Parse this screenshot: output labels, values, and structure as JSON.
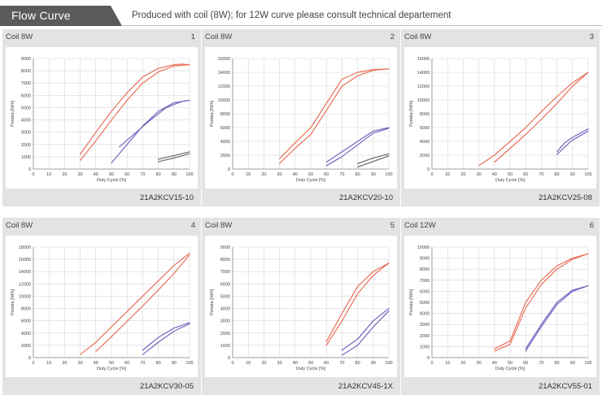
{
  "header": {
    "title": "Flow Curve",
    "note": "Produced with coil (8W); for 12W curve please consult technical departement"
  },
  "colors": {
    "header_bg": "#5a5a5a",
    "panel_bg": "#e3e3e3",
    "red": "#e8705a",
    "blue": "#7068c0",
    "gray": "#666666"
  },
  "panels": [
    {
      "coil": "Coil 8W",
      "number": "1",
      "code": "21A2KCV15-10"
    },
    {
      "coil": "Coil 8W",
      "number": "2",
      "code": "21A2KCV20-10"
    },
    {
      "coil": "Coil 8W",
      "number": "3",
      "code": "21A2KCV25-08"
    },
    {
      "coil": "Coil 8W",
      "number": "4",
      "code": "21A2KCV30-05"
    },
    {
      "coil": "Coil 8W",
      "number": "5",
      "code": "21A2KCV45-1X"
    },
    {
      "coil": "Coil 12W",
      "number": "6",
      "code": "21A2KCV55-01"
    }
  ],
  "chart_data": [
    {
      "type": "line",
      "xlabel": "Duty Cycle [%]",
      "ylabel": "Portata [Nl/h]",
      "xlim": [
        0,
        100
      ],
      "ylim": [
        0,
        9000
      ],
      "ystep": 1000,
      "grid": true,
      "series": [
        {
          "color": "red",
          "x": [
            30,
            40,
            50,
            60,
            70,
            80,
            90,
            95,
            100
          ],
          "y": [
            1200,
            3000,
            4700,
            6200,
            7500,
            8200,
            8500,
            8550,
            8500
          ]
        },
        {
          "color": "red",
          "x": [
            30,
            40,
            50,
            60,
            70,
            80,
            90,
            100
          ],
          "y": [
            700,
            2300,
            4000,
            5600,
            7000,
            7900,
            8400,
            8500
          ]
        },
        {
          "color": "blue",
          "x": [
            50,
            60,
            70,
            80,
            90,
            100
          ],
          "y": [
            500,
            2000,
            3500,
            4700,
            5400,
            5600
          ]
        },
        {
          "color": "blue",
          "x": [
            55,
            65,
            75,
            85,
            95,
            100
          ],
          "y": [
            1800,
            2900,
            4000,
            5000,
            5500,
            5600
          ]
        },
        {
          "color": "gray",
          "x": [
            80,
            90,
            100
          ],
          "y": [
            800,
            1100,
            1400
          ]
        },
        {
          "color": "gray",
          "x": [
            80,
            90,
            100
          ],
          "y": [
            600,
            900,
            1250
          ]
        }
      ]
    },
    {
      "type": "line",
      "xlabel": "Duty Cycle [%]",
      "ylabel": "Portata [Nl/h]",
      "xlim": [
        0,
        100
      ],
      "ylim": [
        0,
        16000
      ],
      "ystep": 2000,
      "grid": true,
      "series": [
        {
          "color": "red",
          "x": [
            30,
            40,
            50,
            60,
            70,
            80,
            90,
            100
          ],
          "y": [
            1500,
            3800,
            6000,
            9500,
            13000,
            14000,
            14400,
            14500
          ]
        },
        {
          "color": "red",
          "x": [
            30,
            40,
            50,
            60,
            70,
            80,
            90,
            100
          ],
          "y": [
            800,
            3000,
            5000,
            8500,
            12000,
            13500,
            14300,
            14500
          ]
        },
        {
          "color": "blue",
          "x": [
            60,
            70,
            80,
            90,
            100
          ],
          "y": [
            1000,
            2500,
            4000,
            5500,
            6000
          ]
        },
        {
          "color": "blue",
          "x": [
            60,
            70,
            80,
            90,
            100
          ],
          "y": [
            500,
            1800,
            3500,
            5200,
            5900
          ]
        },
        {
          "color": "gray",
          "x": [
            80,
            90,
            100
          ],
          "y": [
            800,
            1600,
            2200
          ]
        },
        {
          "color": "gray",
          "x": [
            80,
            90,
            100
          ],
          "y": [
            300,
            1100,
            1900
          ]
        }
      ]
    },
    {
      "type": "line",
      "xlabel": "Duty Cycle [%]",
      "ylabel": "Portata [Nl/h]",
      "xlim": [
        0,
        100
      ],
      "ylim": [
        0,
        16000
      ],
      "ystep": 2000,
      "grid": true,
      "series": [
        {
          "color": "red",
          "x": [
            30,
            40,
            50,
            60,
            70,
            80,
            90,
            100
          ],
          "y": [
            500,
            2000,
            4000,
            6000,
            8300,
            10500,
            12500,
            14000
          ]
        },
        {
          "color": "red",
          "x": [
            40,
            50,
            60,
            70,
            80,
            90,
            100
          ],
          "y": [
            1000,
            3000,
            5000,
            7200,
            9500,
            12000,
            14000
          ]
        },
        {
          "color": "blue",
          "x": [
            80,
            85,
            90,
            100
          ],
          "y": [
            2500,
            3800,
            4600,
            5800
          ]
        },
        {
          "color": "blue",
          "x": [
            80,
            85,
            90,
            100
          ],
          "y": [
            2100,
            3200,
            4200,
            5500
          ]
        }
      ]
    },
    {
      "type": "line",
      "xlabel": "Duty Cycle [%]",
      "ylabel": "Portata [Nl/h]",
      "xlim": [
        0,
        100
      ],
      "ylim": [
        0,
        18000
      ],
      "ystep": 2000,
      "grid": true,
      "series": [
        {
          "color": "red",
          "x": [
            30,
            40,
            50,
            60,
            70,
            80,
            90,
            100
          ],
          "y": [
            500,
            2500,
            5000,
            7500,
            10000,
            12500,
            15000,
            17000
          ]
        },
        {
          "color": "red",
          "x": [
            40,
            50,
            60,
            70,
            80,
            90,
            100
          ],
          "y": [
            1000,
            3400,
            5900,
            8400,
            11000,
            13700,
            16700
          ]
        },
        {
          "color": "blue",
          "x": [
            70,
            80,
            90,
            100
          ],
          "y": [
            1200,
            3300,
            4800,
            5700
          ]
        },
        {
          "color": "blue",
          "x": [
            70,
            80,
            90,
            100
          ],
          "y": [
            500,
            2500,
            4300,
            5500
          ]
        }
      ]
    },
    {
      "type": "line",
      "xlabel": "Duty Cycle [%]",
      "ylabel": "Portata [Nl/h]",
      "xlim": [
        0,
        100
      ],
      "ylim": [
        0,
        9000
      ],
      "ystep": 1000,
      "grid": true,
      "series": [
        {
          "color": "red",
          "x": [
            60,
            70,
            80,
            90,
            100
          ],
          "y": [
            1300,
            3600,
            5800,
            7000,
            7700
          ]
        },
        {
          "color": "red",
          "x": [
            60,
            70,
            80,
            90,
            100
          ],
          "y": [
            1000,
            3000,
            5200,
            6700,
            7700
          ]
        },
        {
          "color": "blue",
          "x": [
            70,
            80,
            90,
            100
          ],
          "y": [
            600,
            1500,
            3000,
            4000
          ]
        },
        {
          "color": "blue",
          "x": [
            70,
            80,
            90,
            100
          ],
          "y": [
            200,
            1000,
            2500,
            3800
          ]
        }
      ]
    },
    {
      "type": "line",
      "xlabel": "Duty Cycle [%]",
      "ylabel": "Portata [Nl/h]",
      "xlim": [
        0,
        100
      ],
      "ylim": [
        0,
        10000
      ],
      "ystep": 1000,
      "grid": true,
      "series": [
        {
          "color": "red",
          "x": [
            40,
            50,
            60,
            70,
            80,
            90,
            100
          ],
          "y": [
            800,
            1500,
            5000,
            7000,
            8300,
            9000,
            9400
          ]
        },
        {
          "color": "red",
          "x": [
            40,
            50,
            60,
            70,
            80,
            90,
            100
          ],
          "y": [
            600,
            1200,
            4500,
            6600,
            8000,
            8900,
            9400
          ]
        },
        {
          "color": "blue",
          "x": [
            60,
            70,
            80,
            90,
            100
          ],
          "y": [
            800,
            3000,
            5000,
            6100,
            6500
          ]
        },
        {
          "color": "blue",
          "x": [
            60,
            70,
            80,
            90,
            100
          ],
          "y": [
            600,
            2800,
            4800,
            6000,
            6500
          ]
        }
      ]
    }
  ]
}
